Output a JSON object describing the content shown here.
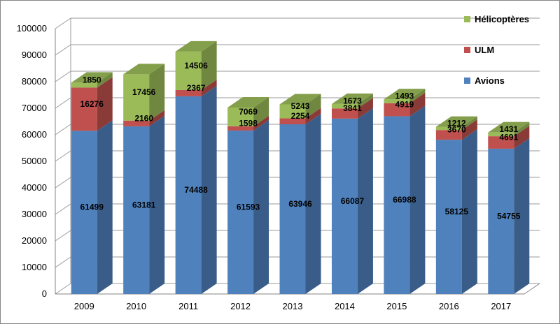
{
  "chart_data": {
    "type": "bar",
    "stacked": true,
    "three_d": true,
    "categories": [
      "2009",
      "2010",
      "2011",
      "2012",
      "2013",
      "2014",
      "2015",
      "2016",
      "2017"
    ],
    "series": [
      {
        "name": "Avions",
        "color": "#4F81BD",
        "values": [
          61499,
          63181,
          74488,
          61593,
          63946,
          66087,
          66988,
          58125,
          54755
        ]
      },
      {
        "name": "ULM",
        "color": "#C0504D",
        "values": [
          16276,
          2160,
          2367,
          1598,
          2254,
          3841,
          4919,
          3670,
          4691
        ]
      },
      {
        "name": "Hélicoptères",
        "color": "#9BBB59",
        "values": [
          1850,
          17456,
          14506,
          7069,
          5243,
          1673,
          1493,
          1212,
          1431
        ]
      }
    ],
    "ylim": [
      0,
      100000
    ],
    "yticks": [
      "0",
      "10000",
      "20000",
      "30000",
      "40000",
      "50000",
      "60000",
      "70000",
      "80000",
      "90000",
      "100000"
    ],
    "grid": true,
    "legend_position": "right",
    "legend_order": [
      "Hélicoptères",
      "ULM",
      "Avions"
    ]
  }
}
